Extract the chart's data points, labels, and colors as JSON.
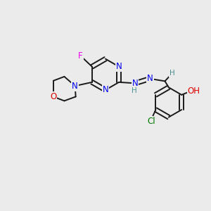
{
  "bg_color": "#ebebeb",
  "bond_color": "#1a1a1a",
  "atom_colors": {
    "N": "#0000ee",
    "O": "#dd0000",
    "F": "#ee00ee",
    "Cl": "#007700",
    "H": "#4a9090"
  },
  "lw": 1.4,
  "fs": 8.5
}
